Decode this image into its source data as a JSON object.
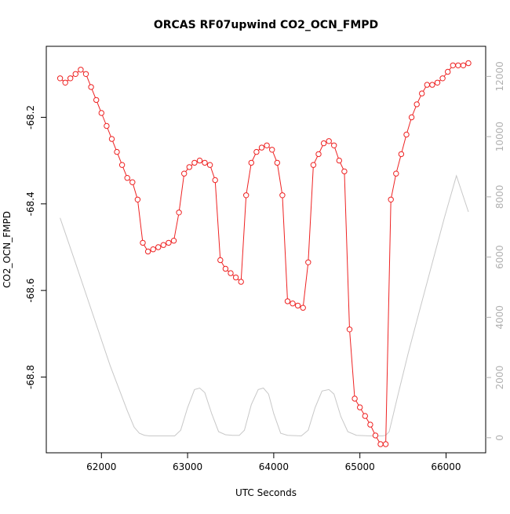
{
  "chart_data": {
    "type": "line",
    "title": "ORCAS RF07upwind CO2_OCN_FMPD",
    "xlabel": "UTC Seconds",
    "ylabel": "CO2_OCN_FMPD",
    "xlim": [
      61360,
      66460
    ],
    "ylim": [
      -68.975,
      -68.036
    ],
    "y2lim": [
      -500,
      13000
    ],
    "x_ticks": [
      62000,
      63000,
      64000,
      65000,
      66000
    ],
    "y_ticks": [
      -68.8,
      -68.6,
      -68.4,
      -68.2
    ],
    "y2_ticks": [
      0,
      2000,
      4000,
      6000,
      8000,
      10000,
      12000
    ],
    "grid": false,
    "colors": {
      "series": "#ee2222",
      "altitude": "#c8c8c8",
      "axis": "#000000",
      "right_axis": "#b0b0b0"
    },
    "series": [
      {
        "marker": "circle",
        "x": [
          61520,
          61580,
          61640,
          61700,
          61760,
          61820,
          61880,
          61940,
          62000,
          62060,
          62120,
          62180,
          62240,
          62300,
          62360,
          62420,
          62480,
          62540,
          62600,
          62660,
          62720,
          62780,
          62840,
          62900,
          62960,
          63020,
          63080,
          63140,
          63200,
          63260,
          63320,
          63380,
          63440,
          63500,
          63560,
          63620,
          63680,
          63740,
          63800,
          63860,
          63920,
          63980,
          64040,
          64100,
          64160,
          64220,
          64280,
          64340,
          64400,
          64460,
          64520,
          64580,
          64640,
          64700,
          64760,
          64820,
          64880,
          64940,
          65000,
          65060,
          65120,
          65180,
          65240,
          65300,
          65360,
          65420,
          65480,
          65540,
          65600,
          65660,
          65720,
          65780,
          65840,
          65900,
          65960,
          66020,
          66080,
          66140,
          66200,
          66260
        ],
        "y": [
          -68.11,
          -68.12,
          -68.11,
          -68.1,
          -68.09,
          -68.1,
          -68.13,
          -68.16,
          -68.19,
          -68.22,
          -68.25,
          -68.28,
          -68.31,
          -68.34,
          -68.35,
          -68.39,
          -68.49,
          -68.51,
          -68.505,
          -68.5,
          -68.495,
          -68.49,
          -68.485,
          -68.42,
          -68.33,
          -68.315,
          -68.305,
          -68.3,
          -68.305,
          -68.31,
          -68.345,
          -68.53,
          -68.55,
          -68.56,
          -68.57,
          -68.58,
          -68.38,
          -68.305,
          -68.28,
          -68.27,
          -68.265,
          -68.275,
          -68.305,
          -68.38,
          -68.625,
          -68.63,
          -68.635,
          -68.64,
          -68.535,
          -68.31,
          -68.285,
          -68.26,
          -68.255,
          -68.265,
          -68.3,
          -68.325,
          -68.69,
          -68.85,
          -68.87,
          -68.89,
          -68.91,
          -68.935,
          -68.955,
          -68.955,
          -68.39,
          -68.33,
          -68.285,
          -68.24,
          -68.2,
          -68.17,
          -68.145,
          -68.125,
          -68.125,
          -68.12,
          -68.11,
          -68.095,
          -68.08,
          -68.08,
          -68.08,
          -68.075
        ]
      },
      {
        "axis": "right",
        "x": [
          61520,
          61700,
          61900,
          62100,
          62300,
          62380,
          62440,
          62500,
          62560,
          62650,
          62750,
          62850,
          62920,
          63000,
          63080,
          63140,
          63200,
          63280,
          63360,
          63440,
          63520,
          63600,
          63660,
          63740,
          63820,
          63880,
          63940,
          64000,
          64080,
          64160,
          64240,
          64320,
          64400,
          64480,
          64560,
          64640,
          64700,
          64780,
          64860,
          64960,
          65040,
          65120,
          65200,
          65260,
          65300,
          65340,
          65440,
          65560,
          65700,
          65840,
          65980,
          66120,
          66260
        ],
        "y": [
          7300,
          5800,
          4100,
          2400,
          900,
          350,
          150,
          80,
          60,
          60,
          60,
          60,
          250,
          1000,
          1600,
          1650,
          1500,
          800,
          200,
          100,
          80,
          80,
          250,
          1100,
          1600,
          1650,
          1450,
          800,
          150,
          80,
          70,
          60,
          250,
          1000,
          1550,
          1600,
          1450,
          700,
          200,
          80,
          70,
          60,
          60,
          60,
          80,
          200,
          1400,
          2800,
          4300,
          5800,
          7300,
          8700,
          7500
        ]
      }
    ]
  }
}
